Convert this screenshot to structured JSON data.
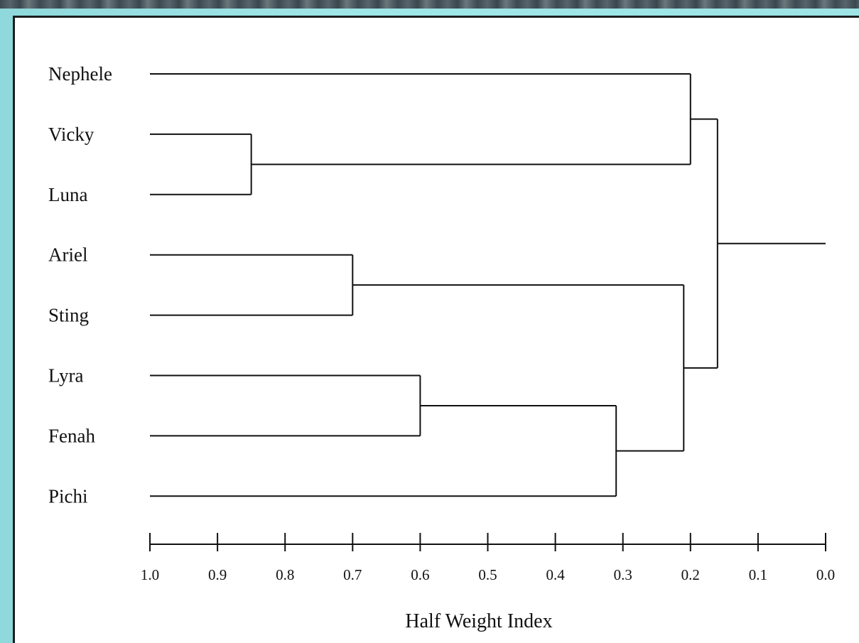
{
  "chart_data": {
    "type": "dendrogram",
    "xlabel": "Half Weight Index",
    "xlim": [
      1.0,
      0.0
    ],
    "x_ticks": [
      "1.0",
      "0.9",
      "0.8",
      "0.7",
      "0.6",
      "0.5",
      "0.4",
      "0.3",
      "0.2",
      "0.1",
      "0.0"
    ],
    "leaves": [
      "Nephele",
      "Vicky",
      "Luna",
      "Ariel",
      "Sting",
      "Lyra",
      "Fenah",
      "Pichi"
    ],
    "merges": [
      {
        "left": "Vicky",
        "right": "Luna",
        "height": 0.85
      },
      {
        "left": "Ariel",
        "right": "Sting",
        "height": 0.7
      },
      {
        "left": "Lyra",
        "right": "Fenah",
        "height": 0.6
      },
      {
        "left": "Lyra+Fenah",
        "right": "Pichi",
        "height": 0.31
      },
      {
        "left": "Nephele",
        "right": "Vicky+Luna",
        "height": 0.2
      },
      {
        "left": "Ariel+Sting",
        "right": "Lyra+Fenah+Pichi",
        "height": 0.21
      },
      {
        "left": "Nephele+Vicky+Luna",
        "right": "Ariel+Sting+Lyra+Fenah+Pichi",
        "height": 0.16
      }
    ],
    "root_height": 0.0
  }
}
